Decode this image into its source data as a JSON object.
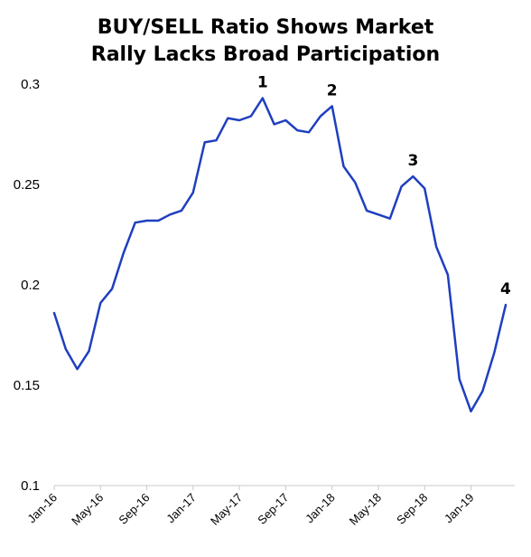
{
  "chart_data": {
    "type": "line",
    "title_lines": [
      "BUY/SELL Ratio Shows Market",
      "Rally Lacks Broad Participation"
    ],
    "xlabel": "",
    "ylabel": "",
    "ylim": [
      0.1,
      0.3
    ],
    "y_ticks": [
      "0.1",
      "0.15",
      "0.2",
      "0.25",
      "0.3"
    ],
    "x_ticks": [
      "Jan-16",
      "May-16",
      "Sep-16",
      "Jan-17",
      "May-17",
      "Sep-17",
      "Jan-18",
      "May-18",
      "Sep-18",
      "Jan-19"
    ],
    "grid": false,
    "line_color": "#1f3fbf",
    "series": [
      {
        "x": [
          "Jan-16",
          "Feb-16",
          "Mar-16",
          "Apr-16",
          "May-16",
          "Jun-16",
          "Jul-16",
          "Aug-16",
          "Sep-16",
          "Oct-16",
          "Nov-16",
          "Dec-16",
          "Jan-17",
          "Feb-17",
          "Mar-17",
          "Apr-17",
          "May-17",
          "Jun-17",
          "Jul-17",
          "Aug-17",
          "Sep-17",
          "Oct-17",
          "Nov-17",
          "Dec-17",
          "Jan-18",
          "Feb-18",
          "Mar-18",
          "Apr-18",
          "May-18",
          "Jun-18",
          "Jul-18",
          "Aug-18",
          "Sep-18",
          "Oct-18",
          "Nov-18",
          "Dec-18",
          "Jan-19",
          "Feb-19",
          "Mar-19",
          "Apr-19"
        ],
        "values": [
          0.186,
          0.168,
          0.158,
          0.167,
          0.191,
          0.198,
          0.216,
          0.231,
          0.232,
          0.232,
          0.235,
          0.237,
          0.246,
          0.271,
          0.272,
          0.283,
          0.282,
          0.284,
          0.293,
          0.28,
          0.282,
          0.277,
          0.276,
          0.284,
          0.289,
          0.259,
          0.251,
          0.237,
          0.235,
          0.233,
          0.249,
          0.254,
          0.248,
          0.219,
          0.205,
          0.153,
          0.137,
          0.147,
          0.166,
          0.19
        ]
      }
    ],
    "annotations": [
      {
        "text": "1",
        "x": "Jul-17"
      },
      {
        "text": "2",
        "x": "Jan-18"
      },
      {
        "text": "3",
        "x": "Aug-18"
      },
      {
        "text": "4",
        "x": "Apr-19"
      }
    ]
  }
}
